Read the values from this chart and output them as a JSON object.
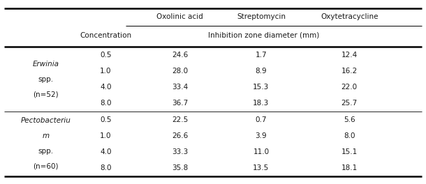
{
  "col_headers_top": [
    "Oxolinic acid",
    "Streptomycin",
    "Oxytetracycline"
  ],
  "subheader_left": "Concentration",
  "subheader_right": "Inhibition zone diameter (mm)",
  "row_groups": [
    {
      "label_lines": [
        "Erwinia",
        "spp.",
        "(n=52)"
      ],
      "italic_indices": [
        0
      ],
      "rows": [
        [
          "0.5",
          "24.6",
          "1.7",
          "12.4"
        ],
        [
          "1.0",
          "28.0",
          "8.9",
          "16.2"
        ],
        [
          "4.0",
          "33.4",
          "15.3",
          "22.0"
        ],
        [
          "8.0",
          "36.7",
          "18.3",
          "25.7"
        ]
      ]
    },
    {
      "label_lines": [
        "Pectobacteriu",
        "m",
        "spp.",
        "(n=60)"
      ],
      "italic_indices": [
        0,
        1
      ],
      "rows": [
        [
          "0.5",
          "22.5",
          "0.7",
          "5.6"
        ],
        [
          "1.0",
          "26.6",
          "3.9",
          "8.0"
        ],
        [
          "4.0",
          "33.3",
          "11.0",
          "15.1"
        ],
        [
          "8.0",
          "35.8",
          "13.5",
          "18.1"
        ]
      ]
    }
  ],
  "font_size": 7.5,
  "bg_color": "#ffffff",
  "text_color": "#1a1a1a",
  "fig_width": 6.1,
  "fig_height": 2.64,
  "dpi": 100
}
